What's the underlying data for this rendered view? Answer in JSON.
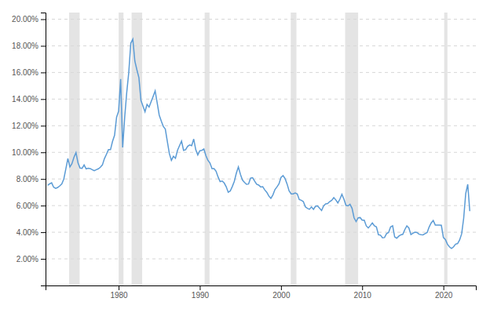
{
  "chart_data": {
    "type": "line",
    "color": "#5b9bd5",
    "grid": true,
    "xlim": [
      1971,
      2024
    ],
    "xticks": [
      1980,
      1990,
      2000,
      2010,
      2020
    ],
    "ylim": [
      0.0,
      0.205
    ],
    "yticks": [
      {
        "value": 0.02,
        "label": "2.00%"
      },
      {
        "value": 0.04,
        "label": "4.00%"
      },
      {
        "value": 0.06,
        "label": "6.00%"
      },
      {
        "value": 0.08,
        "label": "8.00%"
      },
      {
        "value": 0.1,
        "label": "10.00%"
      },
      {
        "value": 0.12,
        "label": "12.00%"
      },
      {
        "value": 0.14,
        "label": "14.00%"
      },
      {
        "value": 0.16,
        "label": "16.00%"
      },
      {
        "value": 0.18,
        "label": "18.00%"
      },
      {
        "value": 0.2,
        "label": "20.00%"
      }
    ],
    "recession_bands": [
      [
        1973.9,
        1975.2
      ],
      [
        1980.0,
        1980.6
      ],
      [
        1981.6,
        1982.9
      ],
      [
        1990.6,
        1991.2
      ],
      [
        2001.2,
        2001.9
      ],
      [
        2007.9,
        2009.5
      ],
      [
        2020.1,
        2020.5
      ]
    ],
    "x": [
      1971.25,
      1971.5,
      1971.75,
      1972.0,
      1972.25,
      1972.5,
      1972.75,
      1973.0,
      1973.25,
      1973.5,
      1973.75,
      1974.0,
      1974.25,
      1974.5,
      1974.75,
      1975.0,
      1975.25,
      1975.5,
      1975.75,
      1976.0,
      1976.25,
      1976.5,
      1976.75,
      1977.0,
      1977.25,
      1977.5,
      1977.75,
      1978.0,
      1978.25,
      1978.5,
      1978.75,
      1979.0,
      1979.25,
      1979.5,
      1979.75,
      1980.0,
      1980.25,
      1980.5,
      1980.75,
      1981.0,
      1981.25,
      1981.5,
      1981.75,
      1982.0,
      1982.25,
      1982.5,
      1982.75,
      1983.0,
      1983.25,
      1983.5,
      1983.75,
      1984.0,
      1984.25,
      1984.5,
      1984.75,
      1985.0,
      1985.25,
      1985.5,
      1985.75,
      1986.0,
      1986.25,
      1986.5,
      1986.75,
      1987.0,
      1987.25,
      1987.5,
      1987.75,
      1988.0,
      1988.25,
      1988.5,
      1988.75,
      1989.0,
      1989.25,
      1989.5,
      1989.75,
      1990.0,
      1990.25,
      1990.5,
      1990.75,
      1991.0,
      1991.25,
      1991.5,
      1991.75,
      1992.0,
      1992.25,
      1992.5,
      1992.75,
      1993.0,
      1993.25,
      1993.5,
      1993.75,
      1994.0,
      1994.25,
      1994.5,
      1994.75,
      1995.0,
      1995.25,
      1995.5,
      1995.75,
      1996.0,
      1996.25,
      1996.5,
      1996.75,
      1997.0,
      1997.25,
      1997.5,
      1997.75,
      1998.0,
      1998.25,
      1998.5,
      1998.75,
      1999.0,
      1999.25,
      1999.5,
      1999.75,
      2000.0,
      2000.25,
      2000.5,
      2000.75,
      2001.0,
      2001.25,
      2001.5,
      2001.75,
      2002.0,
      2002.25,
      2002.5,
      2002.75,
      2003.0,
      2003.25,
      2003.5,
      2003.75,
      2004.0,
      2004.25,
      2004.5,
      2004.75,
      2005.0,
      2005.25,
      2005.5,
      2005.75,
      2006.0,
      2006.25,
      2006.5,
      2006.75,
      2007.0,
      2007.25,
      2007.5,
      2007.75,
      2008.0,
      2008.25,
      2008.5,
      2008.75,
      2009.0,
      2009.25,
      2009.5,
      2009.75,
      2010.0,
      2010.25,
      2010.5,
      2010.75,
      2011.0,
      2011.25,
      2011.5,
      2011.75,
      2012.0,
      2012.25,
      2012.5,
      2012.75,
      2013.0,
      2013.25,
      2013.5,
      2013.75,
      2014.0,
      2014.25,
      2014.5,
      2014.75,
      2015.0,
      2015.25,
      2015.5,
      2015.75,
      2016.0,
      2016.25,
      2016.5,
      2016.75,
      2017.0,
      2017.25,
      2017.5,
      2017.75,
      2018.0,
      2018.25,
      2018.5,
      2018.75,
      2019.0,
      2019.25,
      2019.5,
      2019.75,
      2020.0,
      2020.25,
      2020.5,
      2020.75,
      2021.0,
      2021.25,
      2021.5,
      2021.75,
      2022.0,
      2022.25,
      2022.5,
      2022.75,
      2023.0,
      2023.25
    ],
    "values": [
      0.0752,
      0.0763,
      0.0771,
      0.0738,
      0.073,
      0.0736,
      0.0748,
      0.0763,
      0.08,
      0.0876,
      0.0953,
      0.089,
      0.0915,
      0.0963,
      0.0998,
      0.092,
      0.0882,
      0.088,
      0.0905,
      0.0876,
      0.088,
      0.0878,
      0.087,
      0.0862,
      0.087,
      0.0876,
      0.0888,
      0.0905,
      0.0952,
      0.0985,
      0.102,
      0.102,
      0.1082,
      0.1128,
      0.1264,
      0.131,
      0.155,
      0.1037,
      0.1265,
      0.145,
      0.16,
      0.182,
      0.185,
      0.1685,
      0.162,
      0.156,
      0.139,
      0.1348,
      0.1305,
      0.136,
      0.134,
      0.138,
      0.142,
      0.1462,
      0.1372,
      0.128,
      0.1235,
      0.1195,
      0.1175,
      0.1082,
      0.099,
      0.094,
      0.097,
      0.0955,
      0.1015,
      0.105,
      0.1085,
      0.1015,
      0.102,
      0.1045,
      0.1055,
      0.105,
      0.11,
      0.102,
      0.098,
      0.1012,
      0.1015,
      0.1025,
      0.0975,
      0.094,
      0.092,
      0.0878,
      0.0878,
      0.0858,
      0.0815,
      0.078,
      0.0785,
      0.077,
      0.0742,
      0.07,
      0.071,
      0.0743,
      0.0782,
      0.0844,
      0.089,
      0.0835,
      0.0792,
      0.0775,
      0.076,
      0.0762,
      0.0806,
      0.081,
      0.0784,
      0.076,
      0.0754,
      0.074,
      0.0742,
      0.0718,
      0.07,
      0.0672,
      0.0654,
      0.068,
      0.072,
      0.074,
      0.0763,
      0.0812,
      0.0825,
      0.0803,
      0.0762,
      0.071,
      0.0688,
      0.0688,
      0.0695,
      0.0688,
      0.0645,
      0.064,
      0.063,
      0.059,
      0.058,
      0.0572,
      0.059,
      0.0572,
      0.0595,
      0.0598,
      0.058,
      0.0563,
      0.0598,
      0.0613,
      0.0615,
      0.063,
      0.064,
      0.066,
      0.0643,
      0.062,
      0.0648,
      0.0685,
      0.0648,
      0.0602,
      0.0598,
      0.061,
      0.058,
      0.0508,
      0.048,
      0.0508,
      0.051,
      0.049,
      0.049,
      0.0448,
      0.0432,
      0.045,
      0.047,
      0.0448,
      0.044,
      0.0381,
      0.0378,
      0.0358,
      0.036,
      0.039,
      0.0398,
      0.044,
      0.0448,
      0.0365,
      0.0355,
      0.037,
      0.038,
      0.0384,
      0.042,
      0.0448,
      0.0432,
      0.0382,
      0.0392,
      0.04,
      0.0398,
      0.0385,
      0.0382,
      0.038,
      0.039,
      0.0398,
      0.044,
      0.047,
      0.0488,
      0.0454,
      0.0454,
      0.0454,
      0.0452,
      0.036,
      0.0345,
      0.031,
      0.029,
      0.0278,
      0.029,
      0.031,
      0.0315,
      0.0342,
      0.0388,
      0.0505,
      0.069,
      0.076,
      0.0558
    ]
  }
}
